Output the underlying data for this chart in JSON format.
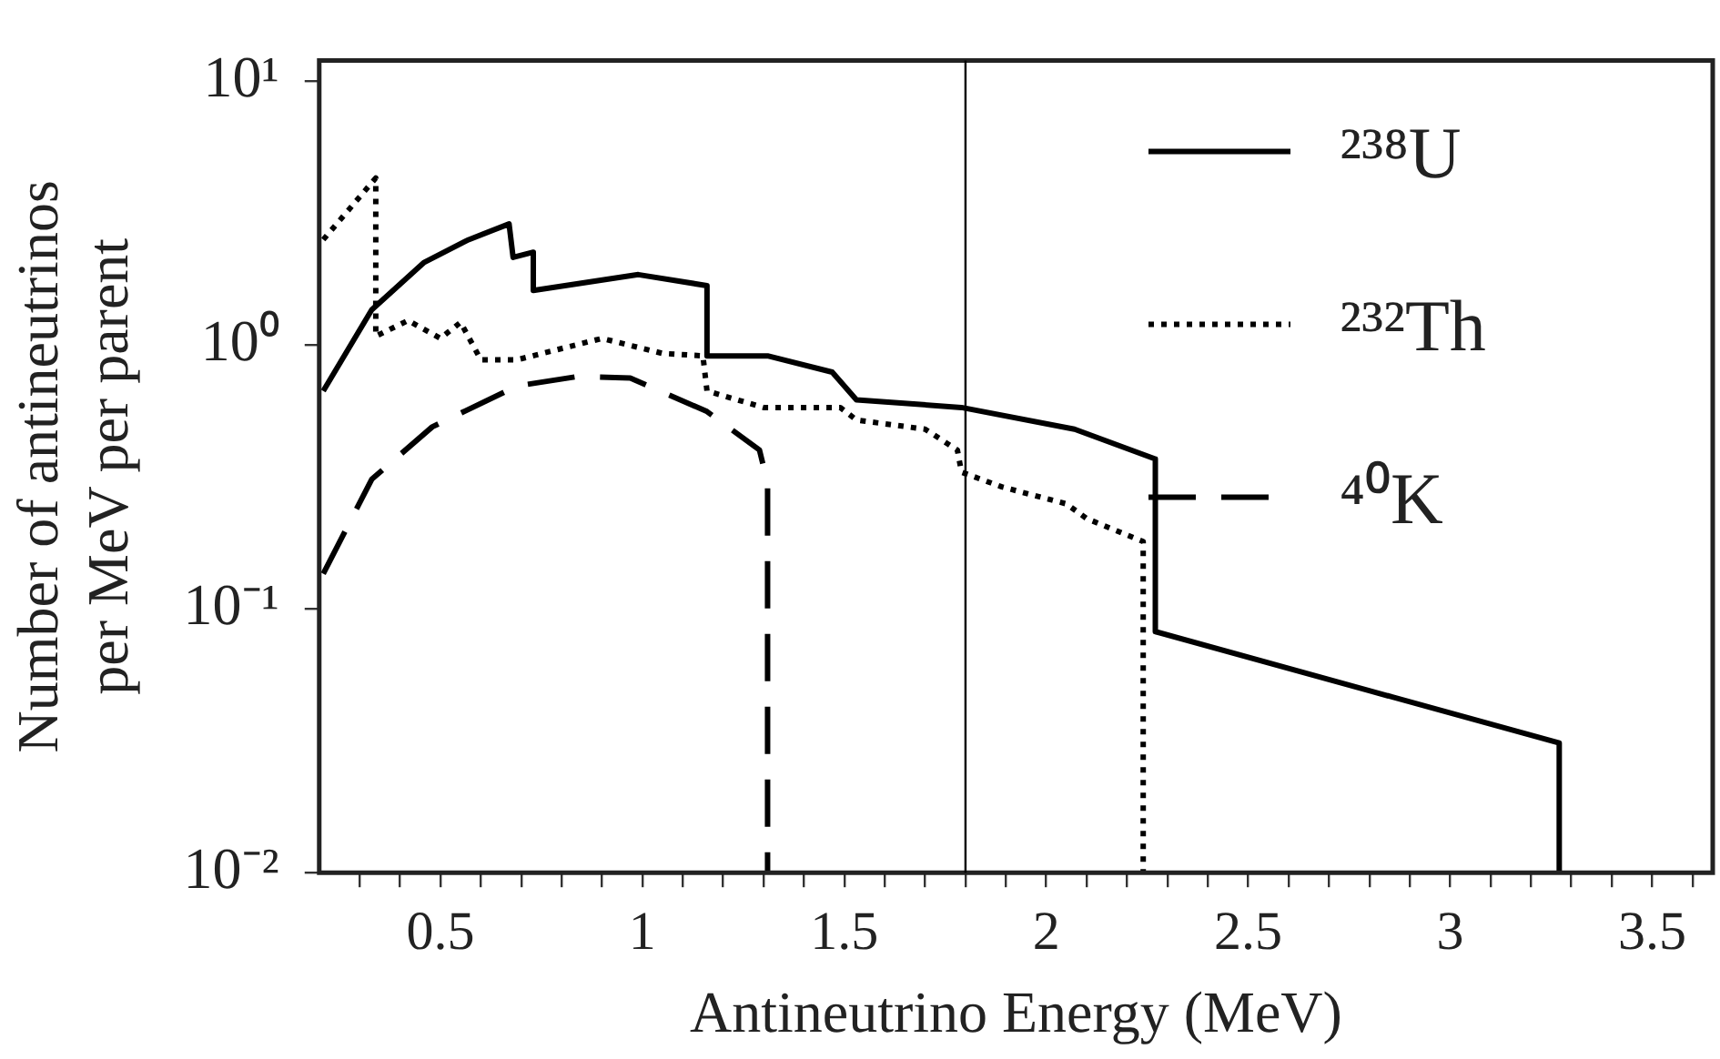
{
  "chart_data": {
    "type": "line",
    "xlabel": "Antineutrino Energy (MeV)",
    "ylabel": "Number of antineutrinos\nper MeV per parent",
    "log": "y",
    "grid": false,
    "legend": "top right",
    "marker": "none",
    "xlim": [
      0.2,
      3.65
    ],
    "ylim": [
      0.01,
      12
    ],
    "xticks": [
      {
        "value": 0.3,
        "label": null
      },
      {
        "value": 0.4,
        "label": null
      },
      0.5,
      {
        "value": 0.6,
        "label": null
      },
      {
        "value": 0.7,
        "label": null
      },
      {
        "value": 0.8,
        "label": null
      },
      {
        "value": 0.9,
        "label": null
      },
      1,
      {
        "value": 1.1,
        "label": null
      },
      {
        "value": 1.2,
        "label": null
      },
      {
        "value": 1.3,
        "label": null
      },
      {
        "value": 1.4,
        "label": null
      },
      1.5,
      {
        "value": 1.6,
        "label": null
      },
      {
        "value": 1.7,
        "label": null
      },
      {
        "value": 1.8,
        "label": null
      },
      {
        "value": 1.9,
        "label": null
      },
      2,
      {
        "value": 2.1,
        "label": null
      },
      {
        "value": 2.2,
        "label": null
      },
      {
        "value": 2.3,
        "label": null
      },
      {
        "value": 2.4,
        "label": null
      },
      2.5,
      {
        "value": 2.6,
        "label": null
      },
      {
        "value": 2.7,
        "label": null
      },
      {
        "value": 2.8,
        "label": null
      },
      {
        "value": 2.9,
        "label": null
      },
      3,
      {
        "value": 3.1,
        "label": null
      },
      {
        "value": 3.2,
        "label": null
      },
      {
        "value": 3.3,
        "label": null
      },
      {
        "value": 3.4,
        "label": null
      },
      3.5,
      {
        "value": 3.6,
        "label": null
      }
    ],
    "yticks": [
      {
        "value": 0.01,
        "label": "10⁻²"
      },
      {
        "value": 0.1,
        "label": "10⁻¹"
      },
      {
        "value": 1,
        "label": "10⁰"
      },
      {
        "value": 10,
        "label": "10¹"
      }
    ],
    "ref_lines": [
      {
        "axis": "x",
        "value": 1.8,
        "color": "#000000"
      }
    ],
    "series": [
      {
        "name": "²³⁸U",
        "color": "#000000",
        "line_style": "solid",
        "x": [
          0.21,
          0.33,
          0.46,
          0.57,
          0.67,
          0.68,
          0.73,
          0.73,
          0.99,
          1.16,
          1.16,
          1.31,
          1.47,
          1.53,
          1.79,
          2.07,
          2.27,
          2.27,
          3.27,
          3.27
        ],
        "values": [
          0.67,
          1.36,
          2.06,
          2.51,
          2.88,
          2.15,
          2.25,
          1.61,
          1.85,
          1.68,
          0.91,
          0.91,
          0.79,
          0.62,
          0.58,
          0.48,
          0.37,
          0.082,
          0.031,
          0.01
        ]
      },
      {
        "name": "²³²Th",
        "color": "#000000",
        "line_style": "dotted",
        "x": [
          0.21,
          0.34,
          0.34,
          0.42,
          0.5,
          0.55,
          0.6,
          0.69,
          0.9,
          1.05,
          1.15,
          1.16,
          1.3,
          1.49,
          1.53,
          1.7,
          1.78,
          1.79,
          1.89,
          2.05,
          2.1,
          2.24,
          2.24
        ],
        "values": [
          2.51,
          4.3,
          1.08,
          1.24,
          1.06,
          1.22,
          0.88,
          0.88,
          1.06,
          0.93,
          0.91,
          0.67,
          0.58,
          0.58,
          0.52,
          0.48,
          0.4,
          0.33,
          0.29,
          0.25,
          0.22,
          0.18,
          0.01
        ]
      },
      {
        "name": "⁴⁰K",
        "color": "#000000",
        "line_style": "dashed",
        "x": [
          0.21,
          0.33,
          0.48,
          0.69,
          0.84,
          0.97,
          1.16,
          1.29,
          1.31,
          1.31
        ],
        "values": [
          0.136,
          0.31,
          0.49,
          0.7,
          0.76,
          0.75,
          0.56,
          0.4,
          0.3,
          0.01
        ]
      }
    ]
  }
}
